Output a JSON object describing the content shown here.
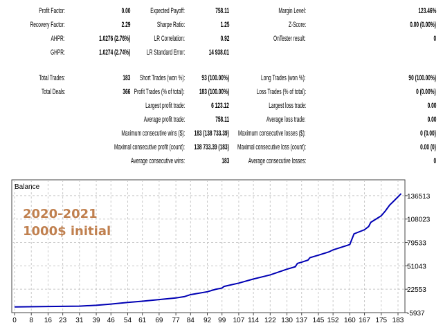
{
  "stats": [
    {
      "label": "Profit Factor:",
      "value": "0.00"
    },
    {
      "label": "Recovery Factor:",
      "value": "2.29"
    },
    {
      "label": "AHPR:",
      "value": "1.0276 (2.76%)"
    },
    {
      "label": "GHPR:",
      "value": "1.0274 (2.74%)"
    },
    {
      "label": "Expected Payoff:",
      "value": "758.11"
    },
    {
      "label": "Sharpe Ratio:",
      "value": "1.25"
    },
    {
      "label": "LR Correlation:",
      "value": "0.92"
    },
    {
      "label": "LR Standard Error:",
      "value": "14 938.01"
    },
    {
      "label": "Margin Level:",
      "value": "123.46%"
    },
    {
      "label": "Z-Score:",
      "value": "0.00 (0.00%)"
    },
    {
      "label": "OnTester result:",
      "value": "0"
    },
    {
      "label": "Total Trades:",
      "value": "183"
    },
    {
      "label": "Total Deals:",
      "value": "366"
    },
    {
      "label": "Short Trades (won %):",
      "value": "93 (100.00%)"
    },
    {
      "label": "Profit Trades (% of total):",
      "value": "183 (100.00%)"
    },
    {
      "label": "Largest profit trade:",
      "value": "6 123.12"
    },
    {
      "label": "Average profit trade:",
      "value": "758.11"
    },
    {
      "label": "Maximum consecutive wins ($):",
      "value": "183 (138 733.39)"
    },
    {
      "label": "Maximal consecutive profit (count):",
      "value": "138 733.39 (183)"
    },
    {
      "label": "Average consecutive wins:",
      "value": "183"
    },
    {
      "label": "Long Trades (won %):",
      "value": "90 (100.00%)"
    },
    {
      "label": "Loss Trades (% of total):",
      "value": "0 (0.00%)"
    },
    {
      "label": "Largest loss trade:",
      "value": "0.00"
    },
    {
      "label": "Average loss trade:",
      "value": "0.00"
    },
    {
      "label": "Maximum consecutive losses ($):",
      "value": "0 (0.00)"
    },
    {
      "label": "Maximal consecutive loss (count):",
      "value": "0.00 (0)"
    },
    {
      "label": "Average consecutive losses:",
      "value": "0"
    }
  ],
  "chart_data": {
    "type": "line",
    "title": "Balance",
    "annotation": [
      "2020-2021",
      "1000$ initial"
    ],
    "annotation_color": "#c0804f",
    "line_color": "#0000b4",
    "xlim": [
      0,
      185
    ],
    "ylim": [
      -5937,
      155800
    ],
    "x_ticks": [
      0,
      8,
      16,
      23,
      31,
      39,
      46,
      54,
      61,
      69,
      77,
      84,
      92,
      99,
      107,
      114,
      122,
      130,
      137,
      145,
      152,
      160,
      167,
      175,
      183
    ],
    "y_ticks": [
      -5937,
      22553,
      51043,
      79533,
      108023,
      136513
    ],
    "grid": true,
    "series": [
      {
        "name": "Balance",
        "x": [
          0,
          16,
          31,
          39,
          46,
          54,
          61,
          69,
          77,
          81,
          84,
          92,
          96,
          99,
          100,
          107,
          114,
          122,
          130,
          134,
          135,
          137,
          140,
          141,
          145,
          150,
          152,
          160,
          162,
          167,
          169,
          170,
          175,
          177,
          179,
          181,
          185
        ],
        "y": [
          1000,
          1500,
          2000,
          3000,
          4500,
          6500,
          8000,
          10000,
          12000,
          13500,
          16000,
          19500,
          22500,
          24000,
          26000,
          30000,
          35000,
          40000,
          47000,
          50000,
          54000,
          55500,
          58000,
          61000,
          64000,
          68000,
          70500,
          77000,
          90000,
          95000,
          99000,
          104000,
          112000,
          118000,
          125000,
          130000,
          139000
        ]
      }
    ]
  }
}
